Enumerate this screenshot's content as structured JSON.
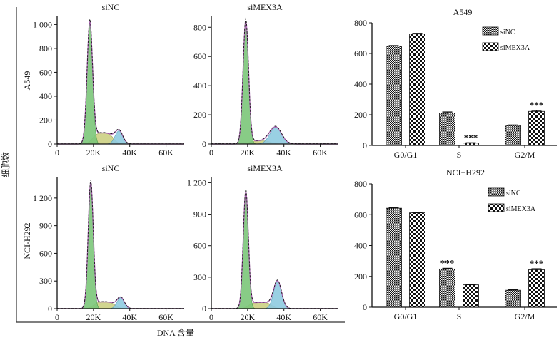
{
  "figure": {
    "y_axis_label": "细胞数",
    "x_axis_label": "DNA 含量",
    "row_labels": [
      "A549",
      "NCI-H292"
    ],
    "colors": {
      "g1_fill": "#7cc77a",
      "s_fill": "#cfd38a",
      "g2_fill": "#8fcbe0",
      "envelope": "#1a1a1a",
      "fit_line": "#b06ab8"
    }
  },
  "chart_data": [
    {
      "type": "area",
      "title": "siNC",
      "row": "A549",
      "x_ticks": [
        "0",
        "20K",
        "40K",
        "60K"
      ],
      "y_ticks": [
        "0",
        "200",
        "400",
        "600",
        "800",
        "1 000"
      ],
      "xlim": [
        0,
        70000
      ],
      "ylim": [
        0,
        1050
      ],
      "g1_peak": {
        "x": 18000,
        "height": 1000,
        "width": 1500
      },
      "s_phase": {
        "from": 19500,
        "to": 31000,
        "level": 95
      },
      "g2_peak": {
        "x": 34000,
        "height": 110,
        "width": 2100
      }
    },
    {
      "type": "area",
      "title": "siMEX3A",
      "row": "A549",
      "x_ticks": [
        "0",
        "20K",
        "40K",
        "60K"
      ],
      "y_ticks": [
        "0",
        "200",
        "400",
        "600",
        "800"
      ],
      "xlim": [
        0,
        70000
      ],
      "ylim": [
        0,
        860
      ],
      "g1_peak": {
        "x": 19000,
        "height": 840,
        "width": 1500
      },
      "s_phase": {
        "from": 21000,
        "to": 33000,
        "level": 22
      },
      "g2_peak": {
        "x": 35500,
        "height": 115,
        "width": 3200
      }
    },
    {
      "type": "area",
      "title": "siNC",
      "row": "NCI-H292",
      "x_ticks": [
        "0",
        "20K",
        "40K",
        "60K"
      ],
      "y_ticks": [
        "0",
        "300",
        "600",
        "900",
        "1 200"
      ],
      "xlim": [
        0,
        70000
      ],
      "ylim": [
        0,
        1400
      ],
      "g1_peak": {
        "x": 18500,
        "height": 1350,
        "width": 1400
      },
      "s_phase": {
        "from": 20000,
        "to": 32000,
        "level": 75
      },
      "g2_peak": {
        "x": 35000,
        "height": 120,
        "width": 2000
      }
    },
    {
      "type": "area",
      "title": "siMEX3A",
      "row": "NCI-H292",
      "x_ticks": [
        "0",
        "20K",
        "40K",
        "60K"
      ],
      "y_ticks": [
        "0",
        "300",
        "600",
        "900",
        "1 200"
      ],
      "xlim": [
        0,
        70000
      ],
      "ylim": [
        0,
        1230
      ],
      "g1_peak": {
        "x": 19000,
        "height": 1100,
        "width": 1400
      },
      "s_phase": {
        "from": 20500,
        "to": 33500,
        "level": 60
      },
      "g2_peak": {
        "x": 36500,
        "height": 260,
        "width": 2200
      }
    },
    {
      "type": "bar",
      "title": "A549",
      "categories": [
        "G0/G1",
        "S",
        "G2/M"
      ],
      "ylim": [
        0,
        800
      ],
      "y_ticks": [
        "0",
        "200",
        "400",
        "600",
        "800"
      ],
      "legend_position": "top-right",
      "series": [
        {
          "name": "siNC",
          "values": [
            648,
            212,
            130
          ],
          "errors": [
            3,
            6,
            3
          ],
          "pattern": "dense"
        },
        {
          "name": "siMEX3A",
          "values": [
            727,
            15,
            222
          ],
          "errors": [
            4,
            2,
            6
          ],
          "pattern": "check"
        }
      ],
      "annotations": [
        {
          "category": "S",
          "series": "siMEX3A",
          "text": "***"
        },
        {
          "category": "G2/M",
          "series": "siMEX3A",
          "text": "***"
        }
      ]
    },
    {
      "type": "bar",
      "title": "NCI−H292",
      "categories": [
        "G0/G1",
        "S",
        "G2/M"
      ],
      "ylim": [
        0,
        800
      ],
      "y_ticks": [
        "0",
        "200",
        "400",
        "600",
        "800"
      ],
      "legend_position": "top-right",
      "series": [
        {
          "name": "siNC",
          "values": [
            642,
            248,
            110
          ],
          "errors": [
            4,
            4,
            3
          ],
          "pattern": "dense"
        },
        {
          "name": "siMEX3A",
          "values": [
            612,
            145,
            243
          ],
          "errors": [
            4,
            3,
            6
          ],
          "pattern": "check"
        }
      ],
      "annotations": [
        {
          "category": "S",
          "series": "siNC",
          "text": "***"
        },
        {
          "category": "G2/M",
          "series": "siMEX3A",
          "text": "***"
        }
      ]
    }
  ]
}
